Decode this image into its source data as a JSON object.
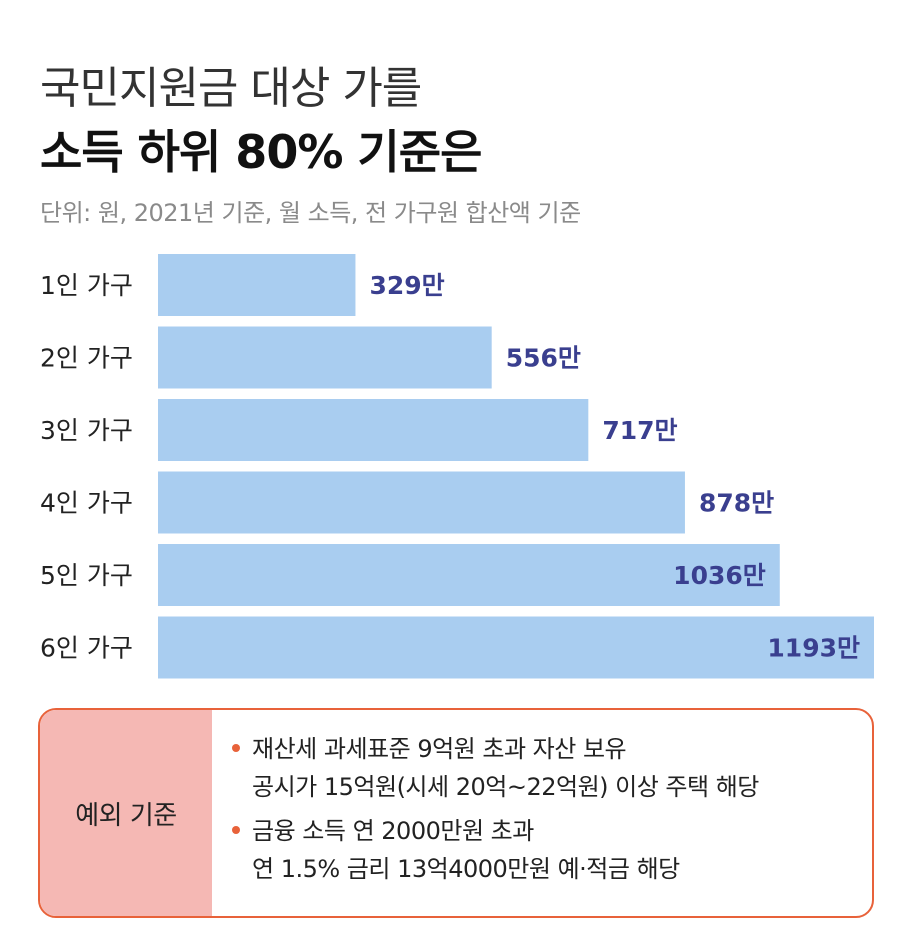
{
  "header": {
    "title_line1": "국민지원금 대상 가를",
    "title_line2": "소득 하위 80% 기준은",
    "subtitle": "단위: 원, 2021년 기준, 월 소득, 전 가구원 합산액 기준"
  },
  "chart_data": {
    "type": "bar",
    "orientation": "horizontal",
    "categories": [
      "1인 가구",
      "2인 가구",
      "3인 가구",
      "4인 가구",
      "5인 가구",
      "6인 가구"
    ],
    "values": [
      329,
      556,
      717,
      878,
      1036,
      1193
    ],
    "value_labels": [
      "329만",
      "556만",
      "717만",
      "878만",
      "1036만",
      "1193만"
    ],
    "unit": "만",
    "xlim": [
      0,
      1193
    ],
    "grid": false,
    "bar_color": "#a9cdf0",
    "label_color": "#3a3f8f"
  },
  "exception": {
    "label": "예외 기준",
    "items": [
      {
        "line1": "재산세 과세표준 9억원 초과 자산 보유",
        "line2": "공시가 15억원(시세 20억~22억원) 이상 주택 해당"
      },
      {
        "line1": "금융 소득 연 2000만원 초과",
        "line2": "연 1.5% 금리 13억4000만원 예·적금 해당"
      }
    ],
    "accent_color": "#e8623a",
    "label_bg": "#f5b8b4"
  }
}
